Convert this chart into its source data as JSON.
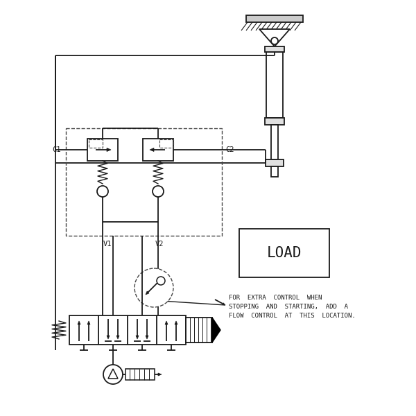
{
  "bg_color": "#ffffff",
  "lc": "#1a1a1a",
  "dc": "#444444",
  "annotation": "FOR  EXTRA  CONTROL  WHEN\nSTOPPING  AND  STARTING,  ADD  A\nFLOW  CONTROL  AT  THIS  LOCATION.",
  "label_C1": "C1",
  "label_C2": "C2",
  "label_V1": "V1",
  "label_V2": "V2",
  "label_LOAD": "LOAD",
  "fs_small": 7.5,
  "fs_load": 15
}
